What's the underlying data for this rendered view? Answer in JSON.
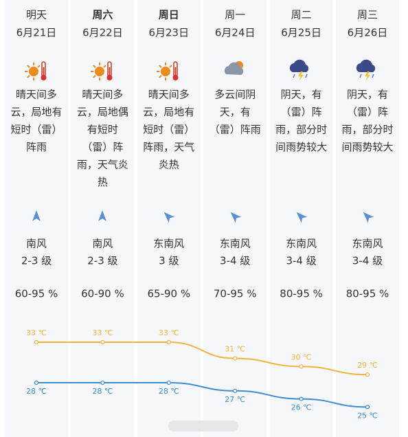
{
  "days": [
    {
      "weekday": "明天",
      "date": "6月21日",
      "description": [
        "晴天间多",
        "云，局地有",
        "短时（雷）",
        "阵雨"
      ],
      "wind_direction": "南风",
      "wind_level": "2-3 级",
      "humidity": "60-95 %"
    },
    {
      "weekday": "周六",
      "date": "6月22日",
      "description": [
        "晴天间多",
        "云，局地偶",
        "有短时",
        "（雷）阵",
        "雨，天气炎",
        "热"
      ],
      "wind_direction": "南风",
      "wind_level": "2-3 级",
      "humidity": "60-90 %"
    },
    {
      "weekday": "周日",
      "date": "6月23日",
      "description": [
        "晴天间多",
        "云，局地有",
        "短时（雷）",
        "阵雨，天气",
        "炎热"
      ],
      "wind_direction": "东南风",
      "wind_level": "3 级",
      "humidity": "65-90 %"
    },
    {
      "weekday": "周一",
      "date": "6月24日",
      "description": [
        "多云间阴",
        "天，有",
        "（雷）阵雨"
      ],
      "wind_direction": "东南风",
      "wind_level": "3-4 级",
      "humidity": "70-95 %"
    },
    {
      "weekday": "周二",
      "date": "6月25日",
      "description": [
        "阴天，有",
        "（雷）阵",
        "雨，部分时",
        "间雨势较大"
      ],
      "wind_direction": "东南风",
      "wind_level": "3-4 级",
      "humidity": "80-95 %"
    },
    {
      "weekday": "周三",
      "date": "6月26日",
      "description": [
        "阴天，有",
        "（雷）阵",
        "雨，部分时",
        "间雨势较大"
      ],
      "wind_direction": "东南风",
      "wind_level": "3-4 级",
      "humidity": "80-95 %"
    }
  ],
  "chart_data": {
    "type": "line",
    "series": [
      {
        "color": "#f0b43c",
        "values": [
          33,
          33,
          33,
          31,
          30,
          29
        ],
        "value_labels": [
          "33 ℃",
          "33 ℃",
          "33 ℃",
          "31 ℃",
          "30 ℃",
          "29 ℃"
        ]
      },
      {
        "color": "#3b8ed6",
        "values": [
          28,
          28,
          28,
          27,
          26,
          25
        ],
        "value_labels": [
          "28 ℃",
          "28 ℃",
          "28 ℃",
          "27 ℃",
          "26 ℃",
          "25 ℃"
        ]
      }
    ]
  }
}
